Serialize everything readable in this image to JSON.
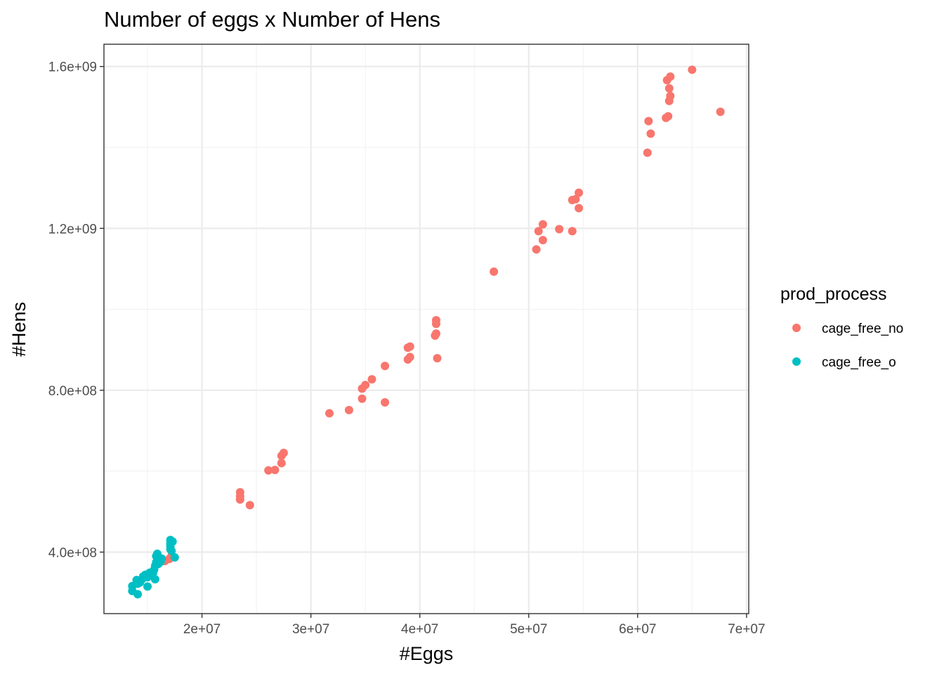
{
  "chart_data": {
    "type": "scatter",
    "title": "Number of eggs x Number of Hens",
    "xlabel": "#Eggs",
    "ylabel": "#Hens",
    "xlim": [
      11000000,
      70200000
    ],
    "ylim": [
      248000000,
      1655000000
    ],
    "x_ticks": [
      20000000,
      30000000,
      40000000,
      50000000,
      60000000,
      70000000
    ],
    "x_tick_labels": [
      "2e+07",
      "3e+07",
      "4e+07",
      "5e+07",
      "6e+07",
      "7e+07"
    ],
    "y_ticks": [
      400000000,
      800000000,
      1200000000,
      1600000000
    ],
    "y_tick_labels": [
      "4.0e+08",
      "8.0e+08",
      "1.2e+09",
      "1.6e+09"
    ],
    "grid": true,
    "legend": {
      "title": "prod_process",
      "position": "right"
    },
    "series": [
      {
        "name": "cage_free_no",
        "color": "#F8766D",
        "points": [
          [
            17000000,
            383000000
          ],
          [
            17200000,
            390000000
          ],
          [
            16600000,
            378000000
          ],
          [
            23500000,
            548000000
          ],
          [
            23500000,
            538000000
          ],
          [
            23500000,
            530000000
          ],
          [
            24400000,
            516000000
          ],
          [
            26100000,
            602000000
          ],
          [
            26700000,
            603000000
          ],
          [
            27300000,
            620000000
          ],
          [
            27300000,
            638000000
          ],
          [
            27500000,
            645000000
          ],
          [
            31700000,
            743000000
          ],
          [
            33500000,
            751000000
          ],
          [
            34700000,
            779000000
          ],
          [
            36800000,
            770000000
          ],
          [
            34700000,
            804000000
          ],
          [
            35000000,
            813000000
          ],
          [
            35600000,
            827000000
          ],
          [
            36800000,
            860000000
          ],
          [
            38900000,
            876000000
          ],
          [
            39100000,
            882000000
          ],
          [
            41600000,
            879000000
          ],
          [
            38900000,
            905000000
          ],
          [
            39100000,
            908000000
          ],
          [
            41400000,
            935000000
          ],
          [
            41500000,
            940000000
          ],
          [
            41500000,
            964000000
          ],
          [
            41500000,
            973000000
          ],
          [
            46800000,
            1093000000
          ],
          [
            50700000,
            1148000000
          ],
          [
            51300000,
            1171000000
          ],
          [
            50900000,
            1193000000
          ],
          [
            51300000,
            1210000000
          ],
          [
            52800000,
            1198000000
          ],
          [
            54000000,
            1193000000
          ],
          [
            54000000,
            1270000000
          ],
          [
            54300000,
            1272000000
          ],
          [
            54600000,
            1288000000
          ],
          [
            54600000,
            1250000000
          ],
          [
            60900000,
            1387000000
          ],
          [
            61200000,
            1434000000
          ],
          [
            61000000,
            1465000000
          ],
          [
            62600000,
            1473000000
          ],
          [
            62800000,
            1477000000
          ],
          [
            62900000,
            1515000000
          ],
          [
            63000000,
            1527000000
          ],
          [
            62900000,
            1546000000
          ],
          [
            62700000,
            1566000000
          ],
          [
            63000000,
            1575000000
          ],
          [
            65000000,
            1592000000
          ],
          [
            67600000,
            1488000000
          ]
        ]
      },
      {
        "name": "cage_free_o",
        "color": "#00BFC4",
        "points": [
          [
            13600000,
            304000000
          ],
          [
            13600000,
            316000000
          ],
          [
            14100000,
            296000000
          ],
          [
            14100000,
            322000000
          ],
          [
            14000000,
            331000000
          ],
          [
            14300000,
            325000000
          ],
          [
            14500000,
            333000000
          ],
          [
            14600000,
            340000000
          ],
          [
            14800000,
            344000000
          ],
          [
            15000000,
            315000000
          ],
          [
            15200000,
            349000000
          ],
          [
            15000000,
            338000000
          ],
          [
            15500000,
            348000000
          ],
          [
            15600000,
            356000000
          ],
          [
            15700000,
            333000000
          ],
          [
            15700000,
            366000000
          ],
          [
            15800000,
            375000000
          ],
          [
            16000000,
            371000000
          ],
          [
            16100000,
            381000000
          ],
          [
            16300000,
            384000000
          ],
          [
            15900000,
            396000000
          ],
          [
            15800000,
            390000000
          ],
          [
            16200000,
            376000000
          ],
          [
            17100000,
            407000000
          ],
          [
            17100000,
            415000000
          ],
          [
            17100000,
            421000000
          ],
          [
            17300000,
            426000000
          ],
          [
            17200000,
            403000000
          ],
          [
            17500000,
            387000000
          ],
          [
            17100000,
            430000000
          ]
        ]
      }
    ]
  }
}
